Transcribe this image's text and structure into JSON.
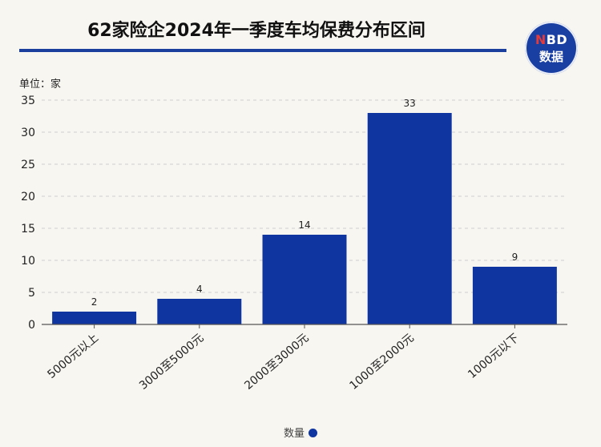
{
  "header": {
    "title": "62家险企2024年一季度车均保费分布区间",
    "logo_line1_accent": "N",
    "logo_line1_rest": "BD",
    "logo_line2": "数据"
  },
  "unit_label": "单位：家",
  "legend": {
    "label": "数量"
  },
  "colors": {
    "bar": "#0f35a0",
    "accent_rule": "#1b3f9c",
    "logo_bg": "#1a3fa3",
    "logo_accent": "#e23b3b",
    "grid": "#cfcfcf",
    "background": "#f8f6f1"
  },
  "chart_data": {
    "type": "bar",
    "title": "62家险企2024年一季度车均保费分布区间",
    "categories": [
      "5000元以上",
      "3000至5000元",
      "2000至3000元",
      "1000至2000元",
      "1000元以下"
    ],
    "values": [
      2,
      4,
      14,
      33,
      9
    ],
    "ylim": [
      0,
      35
    ],
    "yticks": [
      0,
      5,
      10,
      15,
      20,
      25,
      30,
      35
    ],
    "grid": true,
    "legend_position": "bottom",
    "data_labels": true
  }
}
